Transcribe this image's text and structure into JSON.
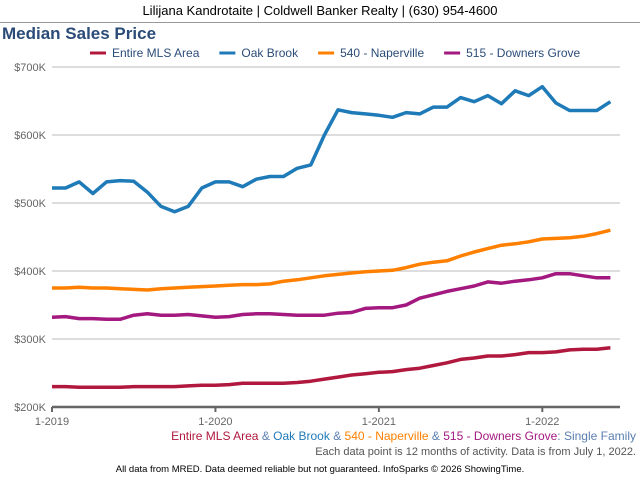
{
  "header": {
    "text": "Lilijana Kandrotaite | Coldwell Banker Realty | (630) 954-4600"
  },
  "chart_data": {
    "type": "line",
    "title": "Median Sales Price",
    "x": [
      "1-2019",
      "2-2019",
      "3-2019",
      "4-2019",
      "5-2019",
      "6-2019",
      "7-2019",
      "8-2019",
      "9-2019",
      "10-2019",
      "11-2019",
      "12-2019",
      "1-2020",
      "2-2020",
      "3-2020",
      "4-2020",
      "5-2020",
      "6-2020",
      "7-2020",
      "8-2020",
      "9-2020",
      "10-2020",
      "11-2020",
      "12-2020",
      "1-2021",
      "2-2021",
      "3-2021",
      "4-2021",
      "5-2021",
      "6-2021",
      "7-2021",
      "8-2021",
      "9-2021",
      "10-2021",
      "11-2021",
      "12-2021",
      "1-2022",
      "2-2022",
      "3-2022",
      "4-2022",
      "5-2022",
      "6-2022"
    ],
    "xticks": [
      "1-2019",
      "1-2020",
      "1-2021",
      "1-2022"
    ],
    "yticks": [
      200000,
      300000,
      400000,
      500000,
      600000,
      700000
    ],
    "ytick_labels": [
      "$200K",
      "$300K",
      "$400K",
      "$500K",
      "$600K",
      "$700K"
    ],
    "ylim": [
      200000,
      700000
    ],
    "grid": true,
    "legend_placement": "top",
    "series": [
      {
        "name": "Entire MLS Area",
        "color": "#b0183d",
        "values": [
          230,
          230,
          229,
          229,
          229,
          229,
          230,
          230,
          230,
          230,
          231,
          232,
          232,
          233,
          235,
          235,
          235,
          235,
          236,
          238,
          241,
          244,
          247,
          249,
          251,
          252,
          255,
          257,
          261,
          265,
          270,
          272,
          275,
          275,
          277,
          280,
          280,
          281,
          284,
          285,
          285,
          287
        ]
      },
      {
        "name": "Oak Brook",
        "color": "#1f7ab8",
        "values": [
          522,
          522,
          531,
          514,
          531,
          533,
          532,
          516,
          495,
          487,
          495,
          522,
          531,
          531,
          524,
          535,
          539,
          539,
          551,
          556,
          600,
          637,
          633,
          631,
          629,
          626,
          633,
          631,
          641,
          641,
          655,
          649,
          658,
          646,
          665,
          658,
          671,
          647,
          636,
          636,
          636,
          649
        ]
      },
      {
        "name": "540 - Naperville",
        "color": "#ff8000",
        "values": [
          375,
          375,
          376,
          375,
          375,
          374,
          373,
          372,
          374,
          375,
          376,
          377,
          378,
          379,
          380,
          380,
          381,
          385,
          387,
          390,
          393,
          395,
          397,
          399,
          400,
          401,
          405,
          410,
          413,
          415,
          422,
          428,
          433,
          438,
          440,
          443,
          447,
          448,
          449,
          451,
          455,
          460
        ]
      },
      {
        "name": "515 - Downers Grove",
        "color": "#a3197f",
        "values": [
          332,
          333,
          330,
          330,
          329,
          329,
          335,
          337,
          335,
          335,
          336,
          334,
          332,
          333,
          336,
          337,
          337,
          336,
          335,
          335,
          335,
          338,
          339,
          345,
          346,
          346,
          350,
          360,
          365,
          370,
          374,
          378,
          384,
          382,
          385,
          387,
          390,
          396,
          396,
          393,
          390,
          390
        ]
      }
    ],
    "value_unit": "thousands USD",
    "subtitle": {
      "parts": [
        {
          "text": "Entire MLS Area",
          "color": "#b0183d"
        },
        {
          "text": " & ",
          "color": "#5a7fb0"
        },
        {
          "text": "Oak Brook",
          "color": "#1f7ab8"
        },
        {
          "text": " & ",
          "color": "#5a7fb0"
        },
        {
          "text": "540 - Naperville",
          "color": "#ff8000"
        },
        {
          "text": " & ",
          "color": "#5a7fb0"
        },
        {
          "text": "515 - Downers Grove",
          "color": "#a3197f"
        },
        {
          "text": ": Single Family",
          "color": "#5a7fb0"
        }
      ]
    },
    "note": "Each data point is 12 months of activity. Data is from July 1, 2022."
  },
  "footer": "All data from MRED. Data deemed reliable but not guaranteed. InfoSparks © 2026 ShowingTime."
}
